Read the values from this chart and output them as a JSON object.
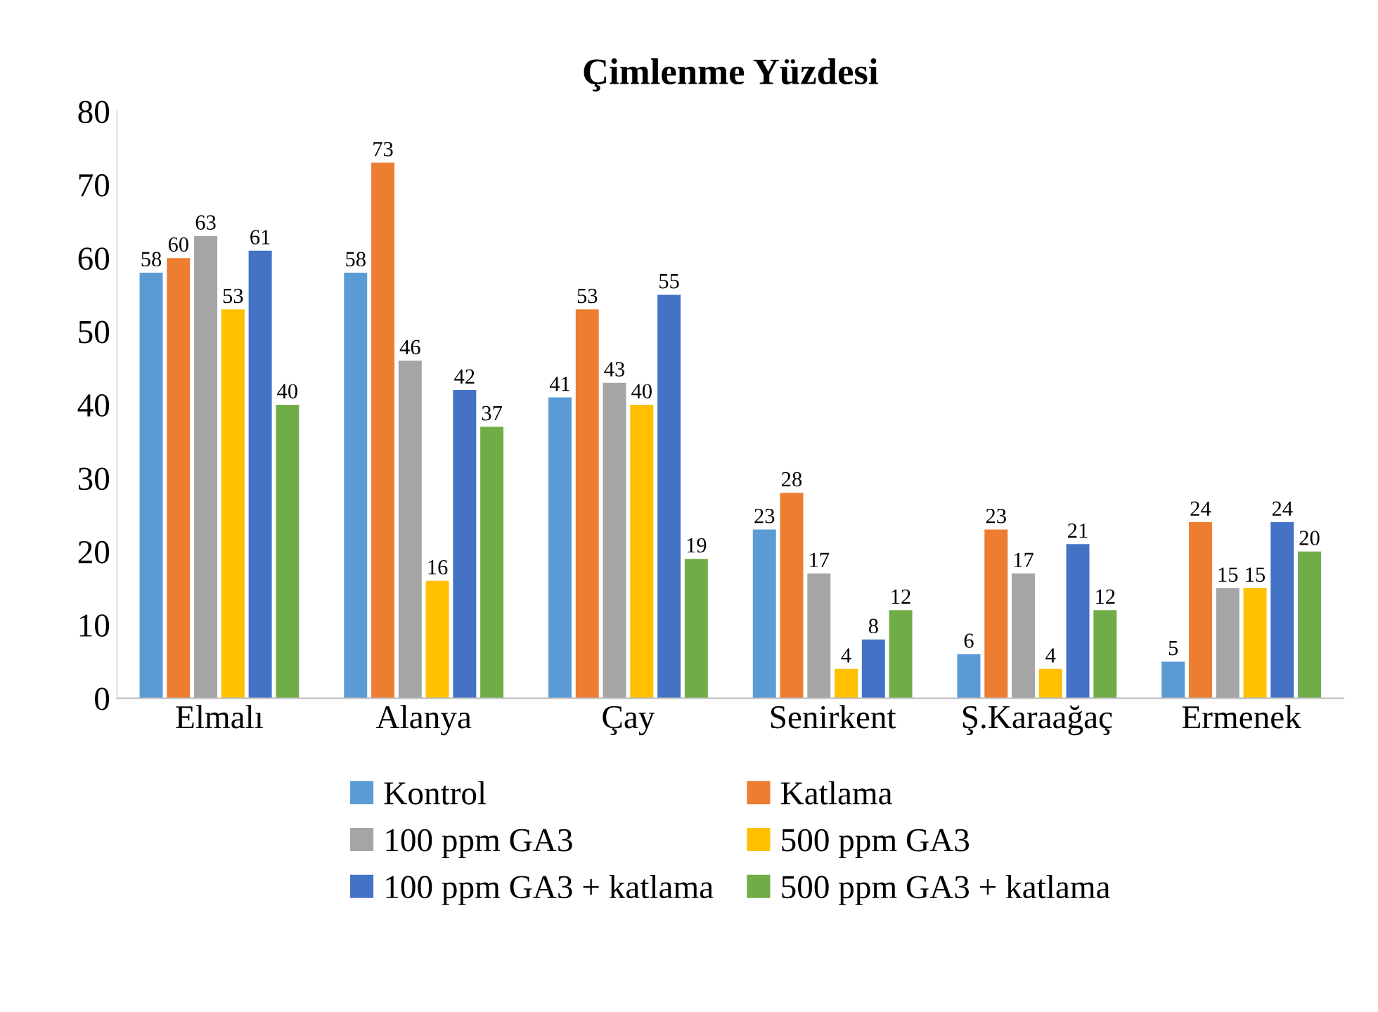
{
  "chart_data": {
    "type": "bar",
    "title": "Çimlenme Yüzdesi",
    "categories": [
      "Elmalı",
      "Alanya",
      "Çay",
      "Senirkent",
      "Ş.Karaağaç",
      "Ermenek"
    ],
    "series": [
      {
        "name": "Kontrol",
        "color": "#5b9bd5",
        "values": [
          58,
          58,
          41,
          23,
          6,
          5
        ]
      },
      {
        "name": "Katlama",
        "color": "#ed7d31",
        "values": [
          60,
          73,
          53,
          28,
          23,
          24
        ]
      },
      {
        "name": "100 ppm GA3",
        "color": "#a5a5a5",
        "values": [
          63,
          46,
          43,
          17,
          17,
          15
        ]
      },
      {
        "name": "500 ppm GA3",
        "color": "#ffc000",
        "values": [
          53,
          16,
          40,
          4,
          4,
          15
        ]
      },
      {
        "name": "100 ppm GA3 + katlama",
        "color": "#4472c4",
        "values": [
          61,
          42,
          55,
          8,
          21,
          24
        ]
      },
      {
        "name": "500 ppm GA3 + katlama",
        "color": "#70ad47",
        "values": [
          40,
          37,
          19,
          12,
          12,
          20
        ]
      }
    ],
    "ylim": [
      0,
      80
    ],
    "yticks": [
      0,
      10,
      20,
      30,
      40,
      50,
      60,
      70,
      80
    ],
    "data_labels": true,
    "grid": false,
    "legend": "bottom"
  }
}
